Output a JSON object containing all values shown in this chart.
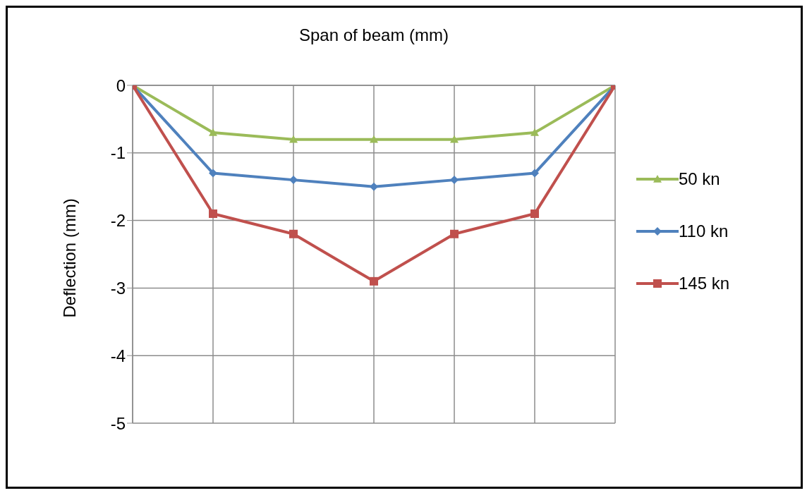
{
  "chart_data": {
    "type": "line",
    "xlabel": "Span of beam (mm)",
    "ylabel": "Deflection (mm)",
    "categories": [
      null,
      null,
      null,
      null,
      null,
      null,
      null
    ],
    "series": [
      {
        "name": "50 kn",
        "color": "#9bbb59",
        "marker": "triangle",
        "values": [
          0,
          -0.7,
          -0.8,
          -0.8,
          -0.8,
          -0.7,
          0
        ]
      },
      {
        "name": "110 kn",
        "color": "#4f81bd",
        "marker": "diamond",
        "values": [
          0,
          -1.3,
          -1.4,
          -1.5,
          -1.4,
          -1.3,
          0
        ]
      },
      {
        "name": "145 kn",
        "color": "#c0504d",
        "marker": "square",
        "values": [
          0,
          -1.9,
          -2.2,
          -2.9,
          -2.2,
          -1.9,
          0
        ]
      }
    ],
    "ylim": [
      -5,
      0
    ],
    "yticks": [
      0,
      -1,
      -2,
      -3,
      -4,
      -5
    ],
    "grid": true,
    "legend": "right",
    "tick_labels": "y"
  }
}
